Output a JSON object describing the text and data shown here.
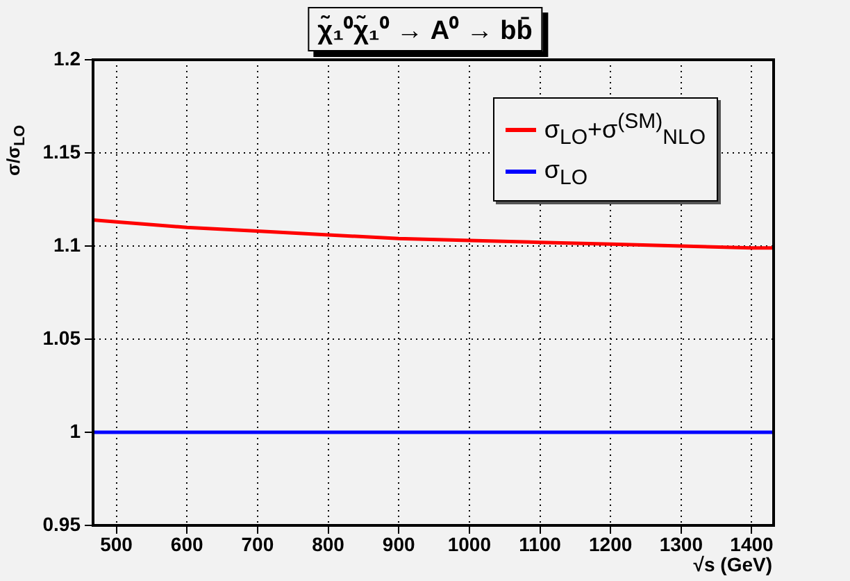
{
  "chart_data": {
    "type": "line",
    "title": "χ̃₁⁰χ̃₁⁰ → A⁰ → bb̄",
    "xlabel": "√s (GeV)",
    "ylabel": "σ/σ$_{LO}$",
    "x": [
      467,
      500,
      600,
      700,
      800,
      900,
      1000,
      1100,
      1200,
      1300,
      1400,
      1431
    ],
    "series": [
      {
        "name": "σ$_{LO}$+σ$^{(SM)}$$_{NLO}$",
        "color": "#ff0000",
        "values": [
          1.114,
          1.113,
          1.11,
          1.108,
          1.106,
          1.104,
          1.103,
          1.102,
          1.101,
          1.1,
          1.099,
          1.099
        ]
      },
      {
        "name": "σ$_{LO}$",
        "color": "#0000ff",
        "values": [
          1,
          1,
          1,
          1,
          1,
          1,
          1,
          1,
          1,
          1,
          1,
          1
        ]
      }
    ],
    "xlim": [
      467,
      1431
    ],
    "xticks": [
      500,
      600,
      700,
      800,
      900,
      1000,
      1100,
      1200,
      1300,
      1400
    ],
    "ylim": [
      0.95,
      1.2
    ],
    "yticks": [
      0.95,
      1,
      1.05,
      1.1,
      1.15,
      1.2
    ],
    "grid": true,
    "legend": "top right",
    "marker": "none",
    "line_style": "solid"
  }
}
